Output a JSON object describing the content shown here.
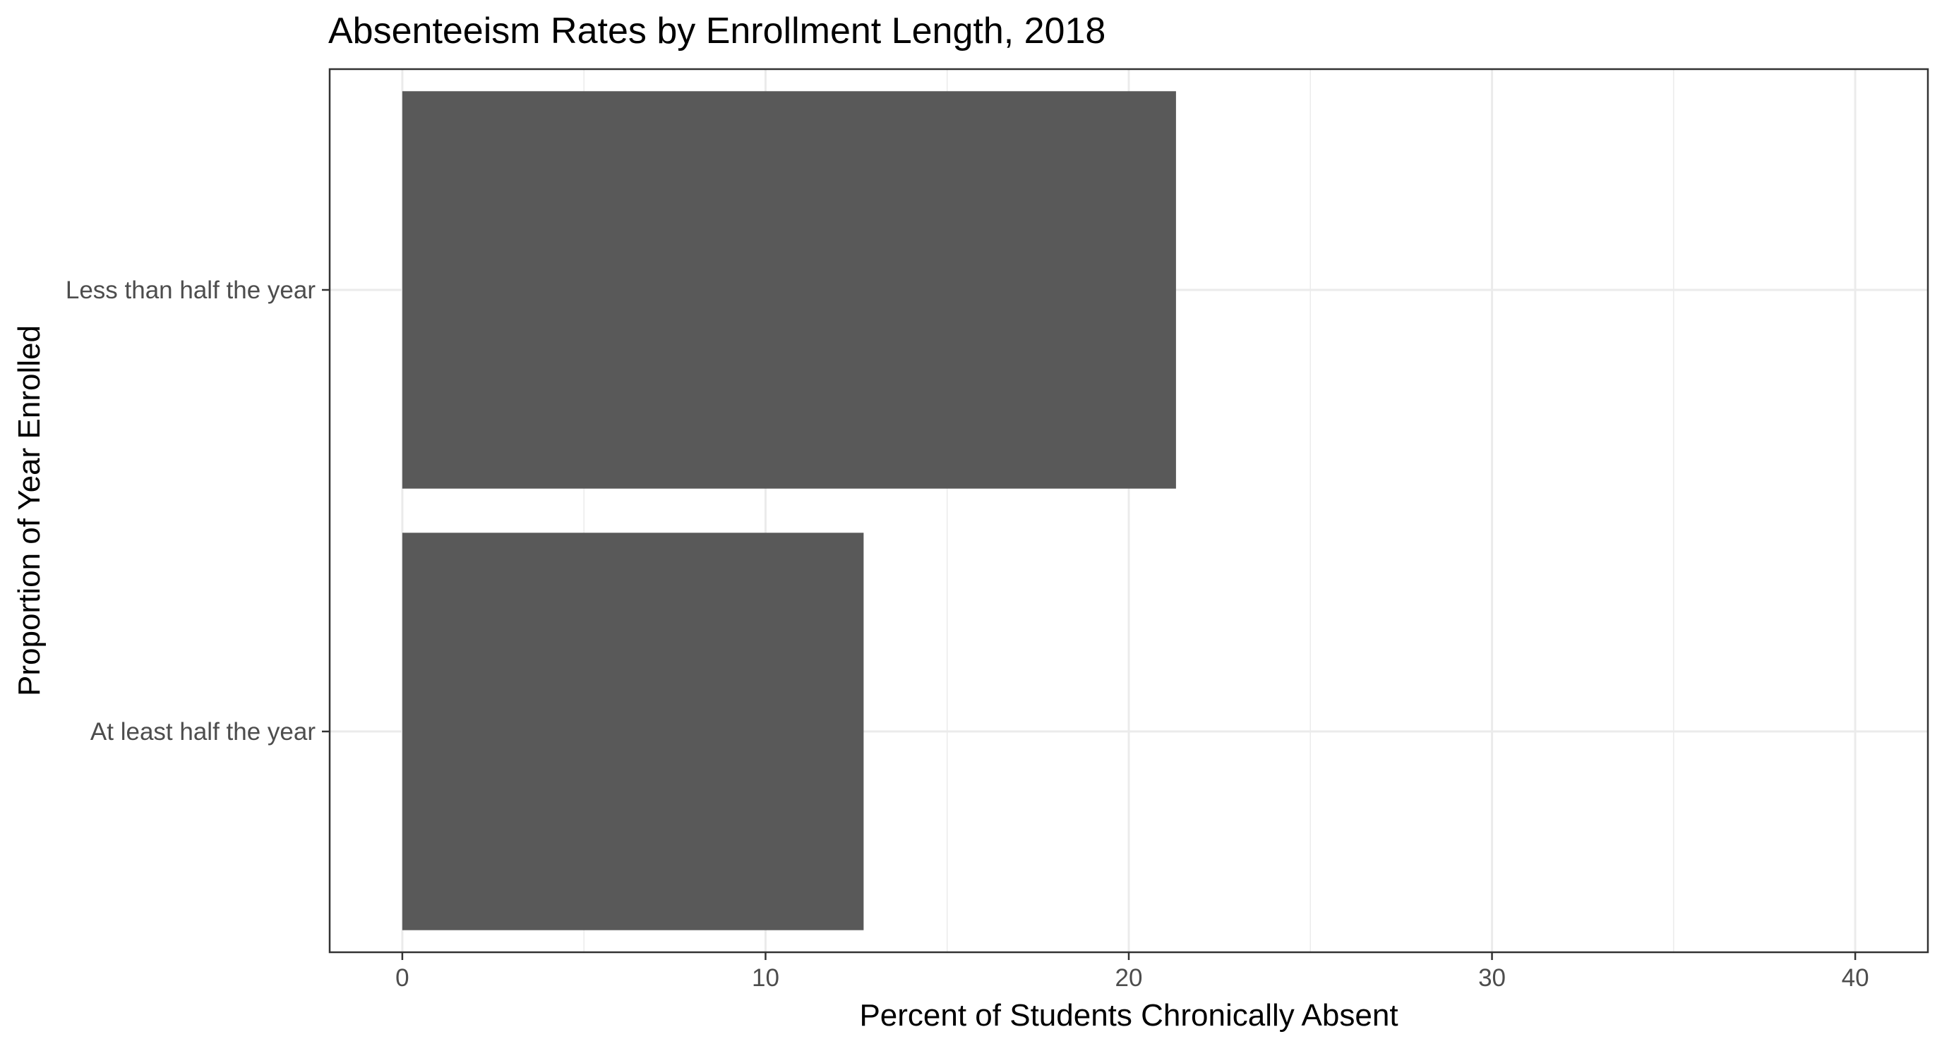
{
  "chart_data": {
    "type": "bar",
    "orientation": "horizontal",
    "title": "Absenteeism Rates by Enrollment Length, 2018",
    "xlabel": "Percent of Students Chronically Absent",
    "ylabel": "Proportion of Year Enrolled",
    "categories": [
      "Less than half the year",
      "At least half the year"
    ],
    "values": [
      21.3,
      12.7
    ],
    "xlim": [
      -2,
      42
    ],
    "x_ticks": [
      0,
      10,
      20,
      30,
      40
    ],
    "x_tick_labels": [
      "0",
      "10",
      "20",
      "30",
      "40"
    ],
    "x_minor_grid": [
      5,
      15,
      25,
      35
    ],
    "grid": true,
    "legend": "none",
    "colors": {
      "bar": "#595959",
      "grid": "#ebebeb",
      "panel_border": "#333333",
      "tick_text": "#4d4d4d",
      "text": "#000000"
    }
  }
}
